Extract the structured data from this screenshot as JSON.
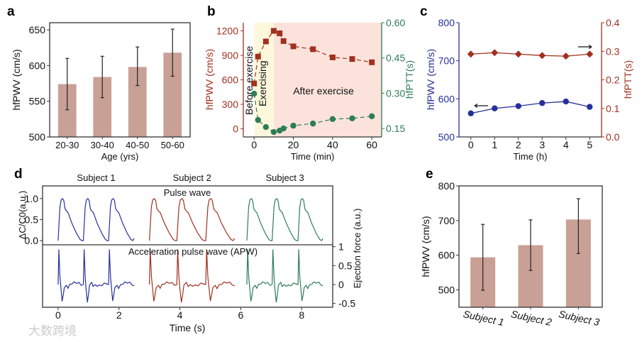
{
  "watermark": "大数跨境",
  "colors": {
    "bar": "#c9a096",
    "red": "#a0311f",
    "green": "#2e7d57",
    "blue": "#26309a",
    "yellow_bg": "#fdf8dc",
    "pink_bg": "#fbe3dc"
  },
  "chart_data": [
    {
      "panel": "a",
      "type": "bar",
      "categories": [
        "20-30",
        "30-40",
        "40-50",
        "50-60"
      ],
      "values": [
        574,
        584,
        598,
        618
      ],
      "err_low": [
        538,
        555,
        572,
        585
      ],
      "err_high": [
        610,
        613,
        626,
        651
      ],
      "xlabel": "Age (yrs)",
      "ylabel": "hfPWV (cm/s)",
      "ylim": [
        500,
        660
      ],
      "yticks": [
        500,
        550,
        600,
        650
      ]
    },
    {
      "panel": "b",
      "type": "line",
      "x": [
        0,
        2,
        6,
        10,
        13,
        15,
        20,
        30,
        40,
        50,
        60
      ],
      "series": [
        {
          "name": "hfPWV (cm/s)",
          "axis": "left",
          "marker": "square",
          "values": [
            555,
            885,
            1070,
            1200,
            1170,
            1075,
            1010,
            975,
            875,
            855,
            815
          ]
        },
        {
          "name": "hfPTT(s)",
          "axis": "right",
          "marker": "circle",
          "values": [
            0.298,
            0.186,
            0.156,
            0.135,
            0.141,
            0.15,
            0.162,
            0.171,
            0.19,
            0.193,
            0.202
          ]
        }
      ],
      "regions": [
        {
          "label": "Before exercise",
          "from": -5.5,
          "to": 0
        },
        {
          "label": "Exercising",
          "from": 0,
          "to": 10
        },
        {
          "label": "After exercise",
          "from": 10,
          "to": 65
        }
      ],
      "xlabel": "Time (min)",
      "ylabel": "hfPWV (cm/s)",
      "y2label": "hfPTT(s)",
      "xlim": [
        -5.5,
        65
      ],
      "xticks": [
        0,
        20,
        40,
        60
      ],
      "ylim": [
        -100,
        1300
      ],
      "yticks": [
        0,
        300,
        600,
        900,
        1200
      ],
      "y2lim": [
        0.114,
        0.6
      ],
      "y2ticks": [
        "0.15",
        "0.30",
        "0.45",
        "0.60"
      ]
    },
    {
      "panel": "c",
      "type": "line",
      "x": [
        0,
        1,
        2,
        3,
        4,
        5
      ],
      "series": [
        {
          "name": "hfPWV (cm/s)",
          "axis": "left",
          "marker": "circle",
          "values": [
            562,
            575,
            581,
            589,
            593,
            579
          ]
        },
        {
          "name": "hfPTT(s)",
          "axis": "right",
          "marker": "diamond",
          "values": [
            0.29,
            0.295,
            0.29,
            0.285,
            0.283,
            0.29
          ]
        }
      ],
      "xlabel": "Time (h)",
      "ylabel": "hfPWV (cm/s)",
      "y2label": "hfPTT(s)",
      "xlim": [
        -0.5,
        5.5
      ],
      "xticks": [
        0,
        1,
        2,
        3,
        4,
        5
      ],
      "ylim": [
        500,
        800
      ],
      "yticks": [
        500,
        600,
        700,
        800
      ],
      "y2lim": [
        0,
        0.4
      ],
      "y2ticks": [
        "0.0",
        "0.1",
        "0.2",
        "0.3",
        "0.4"
      ]
    },
    {
      "panel": "d",
      "type": "line",
      "subjects": [
        {
          "name": "Subject 1",
          "color": "blue",
          "beats": [
            0,
            0.83,
            1.66
          ],
          "end": 2.5
        },
        {
          "name": "Subject 2",
          "color": "red",
          "beats": [
            3.0,
            3.9,
            4.85
          ],
          "end": 5.8
        },
        {
          "name": "Subject 3",
          "color": "green",
          "beats": [
            6.2,
            7.03,
            7.88
          ],
          "end": 8.7
        }
      ],
      "pulse_template": [
        [
          0,
          0
        ],
        [
          0.06,
          0.8
        ],
        [
          0.1,
          0.97
        ],
        [
          0.15,
          1.0
        ],
        [
          0.19,
          0.95
        ],
        [
          0.23,
          0.75
        ],
        [
          0.28,
          0.7
        ],
        [
          0.33,
          0.66
        ],
        [
          0.45,
          0.42
        ],
        [
          0.6,
          0.18
        ],
        [
          0.72,
          0.03
        ],
        [
          0.78,
          0.0
        ],
        [
          0.83,
          0.05
        ]
      ],
      "apw_template": [
        [
          0,
          0
        ],
        [
          0.025,
          0.92
        ],
        [
          0.06,
          0.2
        ],
        [
          0.09,
          -0.1
        ],
        [
          0.13,
          -0.45
        ],
        [
          0.17,
          -0.25
        ],
        [
          0.2,
          -0.05
        ],
        [
          0.27,
          0.02
        ],
        [
          0.32,
          -0.08
        ],
        [
          0.38,
          0.0
        ],
        [
          0.45,
          -0.02
        ],
        [
          0.52,
          0.03
        ],
        [
          0.6,
          0.0
        ],
        [
          0.68,
          0.05
        ],
        [
          0.75,
          0.0
        ],
        [
          0.82,
          0.0
        ]
      ],
      "top_label": "Pulse wave",
      "bottom_label": "Acceleration pulse wave (APW)",
      "xlabel": "Time (s)",
      "ylabel": "ΔC/C0(a.u.)",
      "y2label": "Ejection force (a.u.)",
      "xlim": [
        -0.51,
        9.02
      ],
      "xticks": [
        0,
        2,
        4,
        6,
        8
      ],
      "ylim_top": [
        -0.1,
        1.3
      ],
      "yticks_top": [
        "0.0",
        "0.5",
        "1.0"
      ],
      "ylim_bottom": [
        -0.6,
        1.05
      ],
      "yticks_bottom": [
        "-0.5",
        "0",
        "0.5",
        "1"
      ]
    },
    {
      "panel": "e",
      "type": "bar",
      "categories": [
        "Subject 1",
        "Subject 2",
        "Subject 3"
      ],
      "values": [
        594,
        629,
        703
      ],
      "err_low": [
        499,
        556,
        605
      ],
      "err_high": [
        689,
        702,
        763
      ],
      "ylabel": "hfPWV (cm/s)",
      "ylim": [
        450,
        800
      ],
      "yticks": [
        500,
        600,
        700,
        800
      ]
    }
  ]
}
